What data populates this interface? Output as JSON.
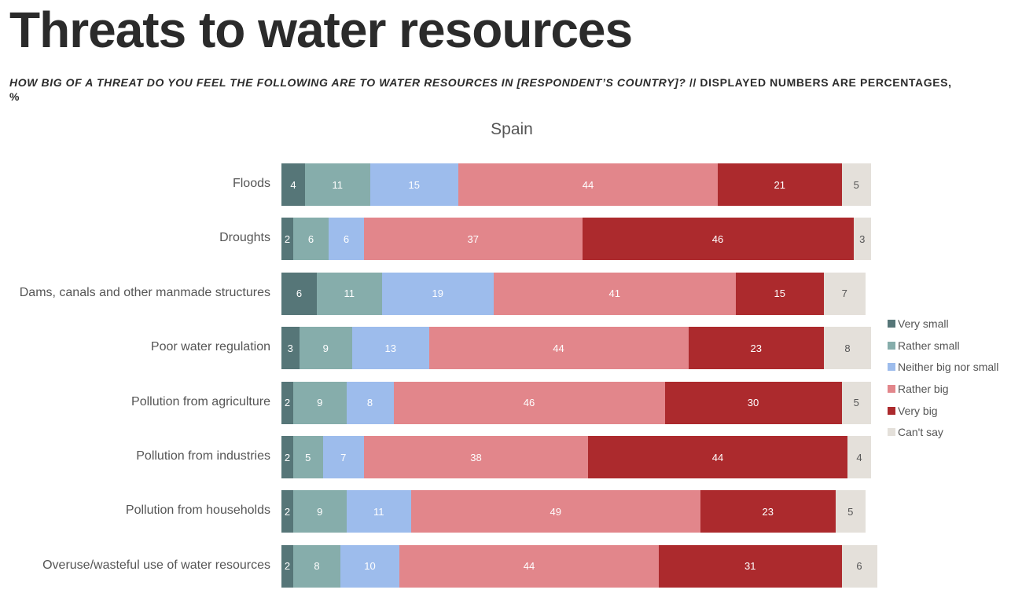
{
  "header": {
    "title": "Threats to water resources",
    "question": "HOW BIG OF A THREAT DO YOU FEEL THE FOLLOWING ARE TO WATER RESOURCES IN [RESPONDENT’S COUNTRY]?",
    "note": " // DISPLAYED NUMBERS ARE PERCENTAGES, %"
  },
  "chart_data": {
    "type": "bar",
    "orientation": "horizontal",
    "stacked": true,
    "title": "Spain",
    "xlabel": "",
    "ylabel": "",
    "grid": false,
    "legend_position": "right",
    "categories": [
      "Floods",
      "Droughts",
      "Dams, canals and other manmade structures",
      "Poor water regulation",
      "Pollution from agriculture",
      "Pollution from industries",
      "Pollution from households",
      "Overuse/wasteful use of water resources"
    ],
    "series": [
      {
        "name": "Very small",
        "color": "#567678",
        "values": [
          4,
          2,
          6,
          3,
          2,
          2,
          2,
          2
        ]
      },
      {
        "name": "Rather small",
        "color": "#86adab",
        "values": [
          11,
          6,
          11,
          9,
          9,
          5,
          9,
          8
        ]
      },
      {
        "name": "Neither big nor small",
        "color": "#9dbcec",
        "values": [
          15,
          6,
          19,
          13,
          8,
          7,
          11,
          10
        ]
      },
      {
        "name": "Rather big",
        "color": "#e2868b",
        "values": [
          44,
          37,
          41,
          44,
          46,
          38,
          49,
          44
        ]
      },
      {
        "name": "Very big",
        "color": "#ac2a2d",
        "values": [
          21,
          46,
          15,
          23,
          30,
          44,
          23,
          31
        ]
      },
      {
        "name": "Can't say",
        "color": "#e4e0da",
        "values": [
          5,
          3,
          7,
          8,
          5,
          4,
          5,
          6
        ]
      }
    ]
  }
}
